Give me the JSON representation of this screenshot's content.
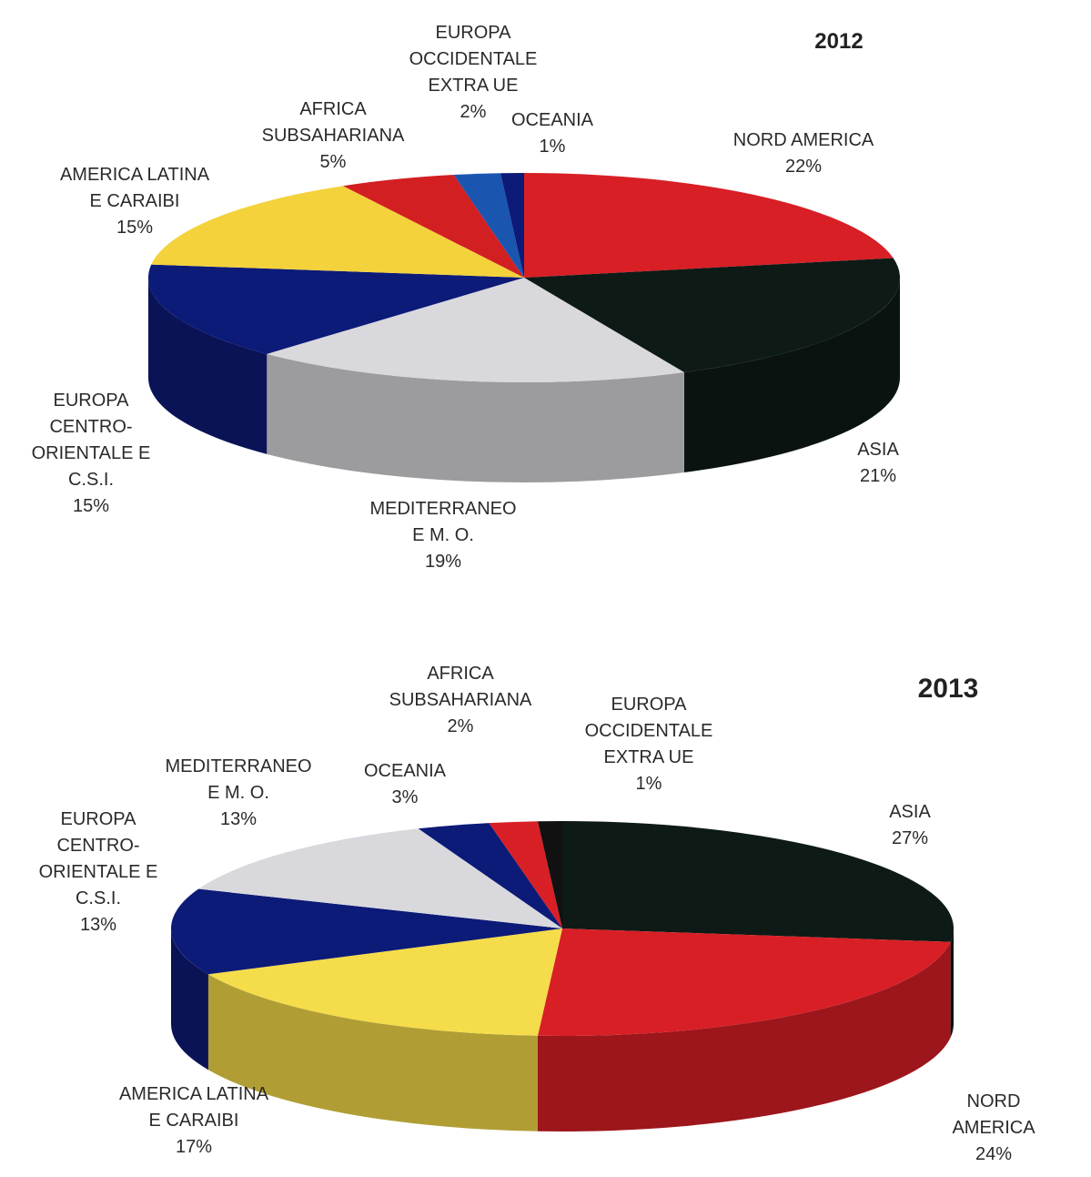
{
  "chart_data": [
    {
      "type": "pie",
      "title": "2012",
      "categories": [
        "NORD AMERICA",
        "ASIA",
        "MEDITERRANEO\nE M. O.",
        "EUROPA\nCENTRO-\nORIENTALE E\nC.S.I.",
        "AMERICA LATINA\nE CARAIBI",
        "AFRICA\nSUBSAHARIANA",
        "EUROPA\nOCCIDENTALE\nEXTRA UE",
        "OCEANIA"
      ],
      "values": [
        22,
        21,
        19,
        15,
        15,
        5,
        2,
        1
      ],
      "value_labels": [
        "22%",
        "21%",
        "19%",
        "15%",
        "15%",
        "5%",
        "2%",
        "1%"
      ],
      "colors": [
        "#d81f26",
        "#0e1a16",
        "#d9d9dd",
        "#0c1a78",
        "#f3d23c",
        "#d21f22",
        "#1a55b0",
        "#0c1a78"
      ]
    },
    {
      "type": "pie",
      "title": "2013",
      "categories": [
        "ASIA",
        "NORD AMERICA",
        "AMERICA LATINA\nE CARAIBI",
        "EUROPA\nCENTRO-\nORIENTALE E\nC.S.I.",
        "MEDITERRANEO\nE M. O.",
        "OCEANIA",
        "AFRICA\nSUBSAHARIANA",
        "EUROPA\nOCCIDENTALE\nEXTRA UE"
      ],
      "values": [
        27,
        24,
        17,
        13,
        13,
        3,
        2,
        1
      ],
      "value_labels": [
        "27%",
        "24%",
        "17%",
        "13%",
        "13%",
        "3%",
        "2%",
        "1%"
      ],
      "colors": [
        "#0e1a16",
        "#d81f26",
        "#f5dc4a",
        "#0c1a78",
        "#d9d9dd",
        "#0c1a78",
        "#d81f26",
        "#111111"
      ]
    }
  ]
}
